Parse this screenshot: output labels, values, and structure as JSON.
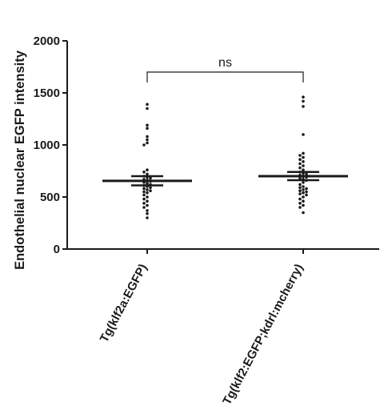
{
  "chart_data": {
    "type": "scatter",
    "ylabel": "Endothelial nuclear EGFP intensity",
    "ylim": [
      0,
      2000
    ],
    "yticks": [
      0,
      500,
      1000,
      1500,
      2000
    ],
    "ytick_labels": [
      "0",
      "500",
      "1000",
      "1500",
      "2000"
    ],
    "grid": false,
    "categories": [
      "Tg(klf2a:EGFP)",
      "Tg(klf2:EGFP;kdrl:mcherry)"
    ],
    "groups": [
      {
        "category": "Tg(klf2a:EGFP)",
        "mean": 655,
        "sem_upper": 700,
        "sem_lower": 612,
        "points": [
          1390,
          1350,
          1190,
          1160,
          1080,
          1050,
          1020,
          1000,
          760,
          740,
          720,
          700,
          690,
          680,
          670,
          660,
          650,
          640,
          630,
          620,
          610,
          600,
          590,
          580,
          570,
          560,
          550,
          540,
          520,
          500,
          480,
          460,
          440,
          420,
          400,
          370,
          340,
          300
        ]
      },
      {
        "category": "Tg(klf2:EGFP;kdrl:mcherry)",
        "mean": 700,
        "sem_upper": 740,
        "sem_lower": 662,
        "points": [
          1460,
          1420,
          1370,
          1100,
          920,
          900,
          880,
          860,
          840,
          820,
          800,
          780,
          760,
          740,
          730,
          720,
          710,
          700,
          690,
          680,
          670,
          660,
          640,
          620,
          600,
          590,
          580,
          570,
          560,
          550,
          540,
          530,
          520,
          500,
          480,
          460,
          440,
          420,
          400,
          350
        ]
      }
    ],
    "annotation": {
      "text": "ns",
      "between": [
        0,
        1
      ],
      "bracket_y": 1700
    }
  }
}
